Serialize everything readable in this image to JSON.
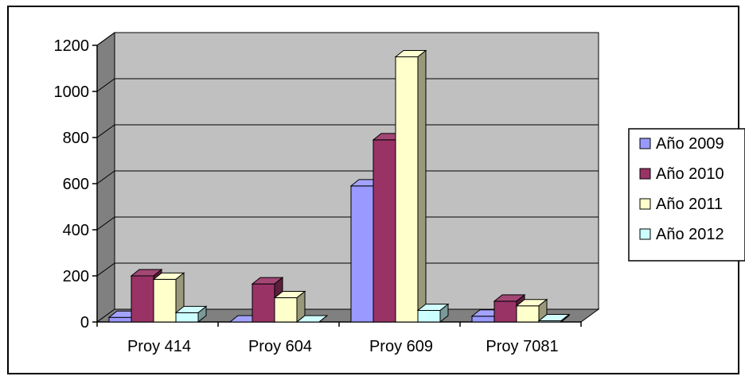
{
  "chart_data": {
    "type": "bar",
    "style": "3d-clustered-column",
    "categories": [
      "Proy 414",
      "Proy 604",
      "Proy 609",
      "Proy 7081"
    ],
    "series": [
      {
        "name": "Año 2009",
        "values": [
          20,
          0,
          590,
          25
        ],
        "color": "#9999FF"
      },
      {
        "name": "Año 2010",
        "values": [
          200,
          165,
          790,
          90
        ],
        "color": "#993366"
      },
      {
        "name": "Año 2011",
        "values": [
          185,
          105,
          1150,
          70
        ],
        "color": "#FFFFCC"
      },
      {
        "name": "Año 2012",
        "values": [
          40,
          0,
          50,
          5
        ],
        "color": "#CCFFFF"
      }
    ],
    "yticks": [
      "0",
      "200",
      "400",
      "600",
      "800",
      "1000",
      "1200"
    ],
    "ylim": [
      0,
      1200
    ],
    "title": "",
    "xlabel": "",
    "ylabel": "",
    "grid": true,
    "legend_position": "right",
    "colors": {
      "plot_background": "#C0C0C0",
      "side_wall": "#808080",
      "floor": "#808080",
      "gridline": "#000000"
    }
  }
}
